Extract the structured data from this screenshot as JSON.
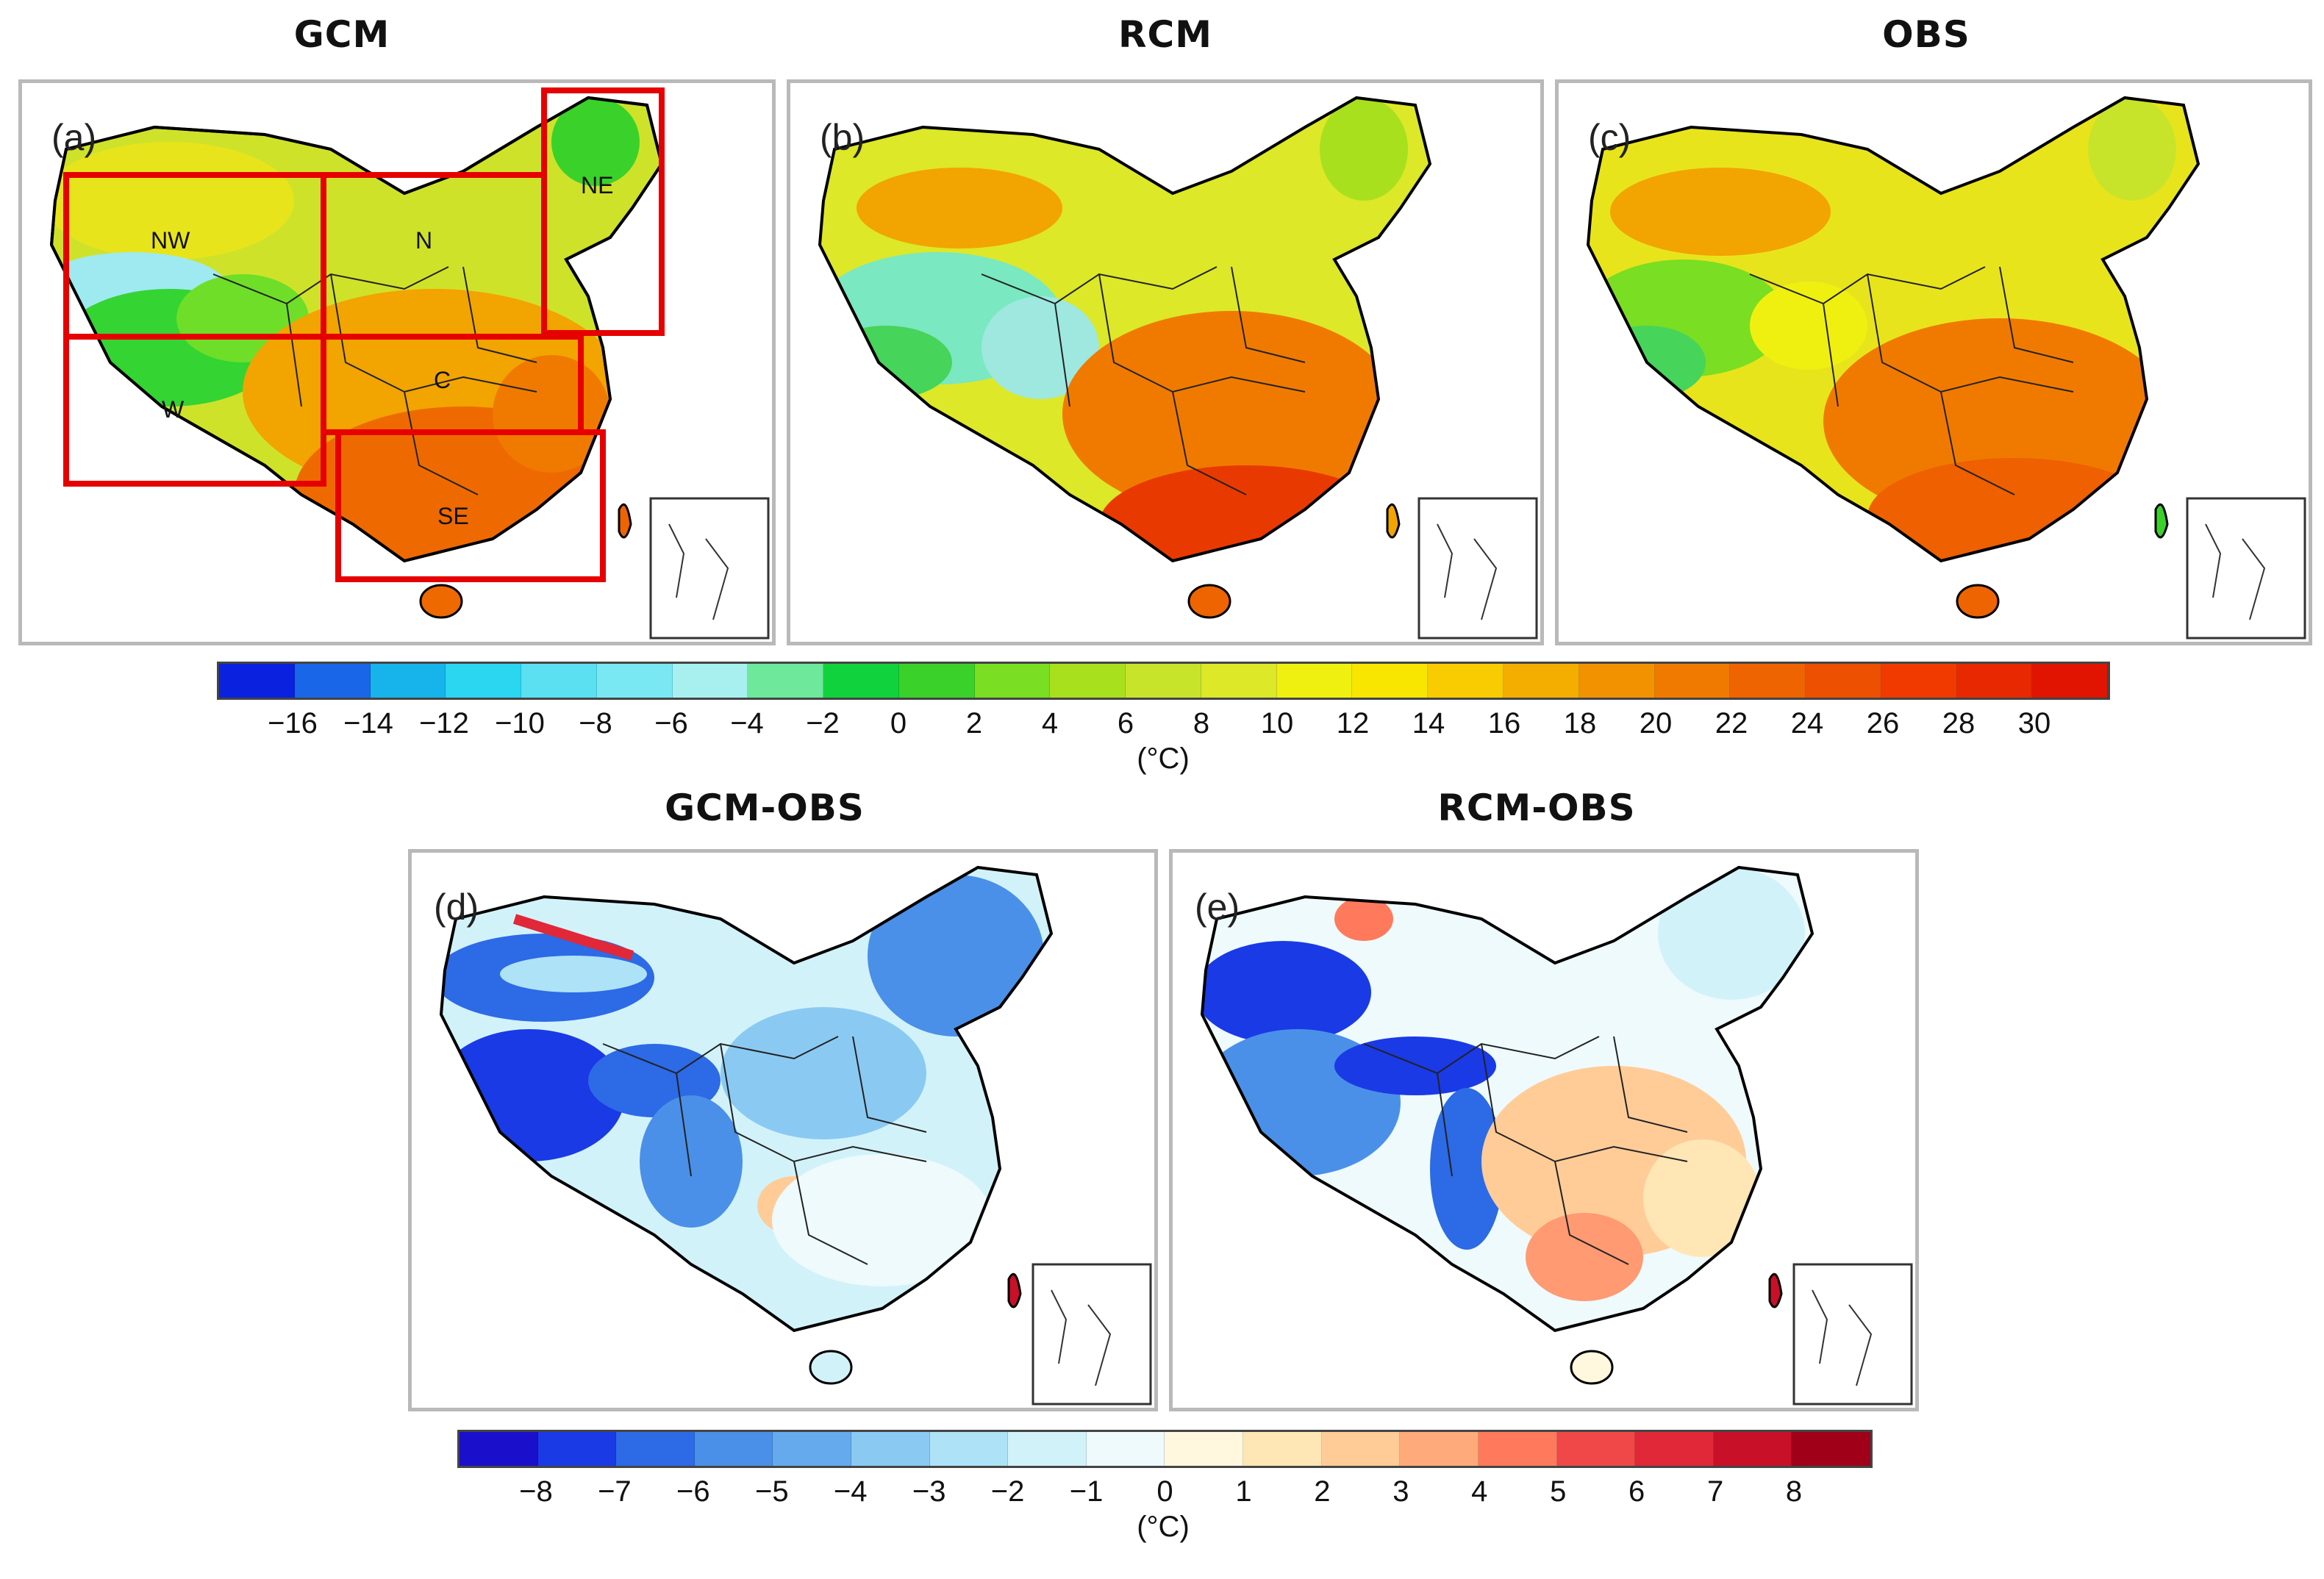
{
  "titles": {
    "gcm": "GCM",
    "rcm": "RCM",
    "obs": "OBS",
    "gcm_obs": "GCM-OBS",
    "rcm_obs": "RCM-OBS"
  },
  "panels": {
    "a": "(a)",
    "b": "(b)",
    "c": "(c)",
    "d": "(d)",
    "e": "(e)"
  },
  "regions": {
    "nw": "NW",
    "n": "N",
    "ne": "NE",
    "w": "W",
    "c": "C",
    "se": "SE"
  },
  "colorbar_top": {
    "unit": "(°C)",
    "ticks": [
      "−16",
      "−14",
      "−12",
      "−10",
      "−8",
      "−6",
      "−4",
      "−2",
      "0",
      "2",
      "4",
      "6",
      "8",
      "10",
      "12",
      "14",
      "16",
      "18",
      "20",
      "22",
      "24",
      "26",
      "28",
      "30"
    ],
    "colors": [
      "#0a22e0",
      "#1a66e8",
      "#16b4ea",
      "#2ad6f0",
      "#5ae0f0",
      "#7ae8f2",
      "#a8f0f0",
      "#6ee89a",
      "#10d23c",
      "#3ad22a",
      "#7ade22",
      "#a8e01e",
      "#c8e42a",
      "#dce828",
      "#f0f010",
      "#f8e600",
      "#f8cc00",
      "#f4ae00",
      "#f29200",
      "#f07a00",
      "#ee6400",
      "#ec5000",
      "#f03a00",
      "#e82800",
      "#e01400"
    ]
  },
  "colorbar_bottom": {
    "unit": "(°C)",
    "ticks": [
      "−8",
      "−7",
      "−6",
      "−5",
      "−4",
      "−3",
      "−2",
      "−1",
      "0",
      "1",
      "2",
      "3",
      "4",
      "5",
      "6",
      "7",
      "8"
    ],
    "colors": [
      "#1a10cc",
      "#1a3ae6",
      "#2c6ae6",
      "#4a90e8",
      "#66aaee",
      "#8acaf2",
      "#aee2f6",
      "#d2f2fa",
      "#eefafc",
      "#fff8de",
      "#ffe6b4",
      "#ffcc98",
      "#ffaa7a",
      "#ff7a5c",
      "#f04848",
      "#e02838",
      "#c81028",
      "#a00018"
    ]
  }
}
